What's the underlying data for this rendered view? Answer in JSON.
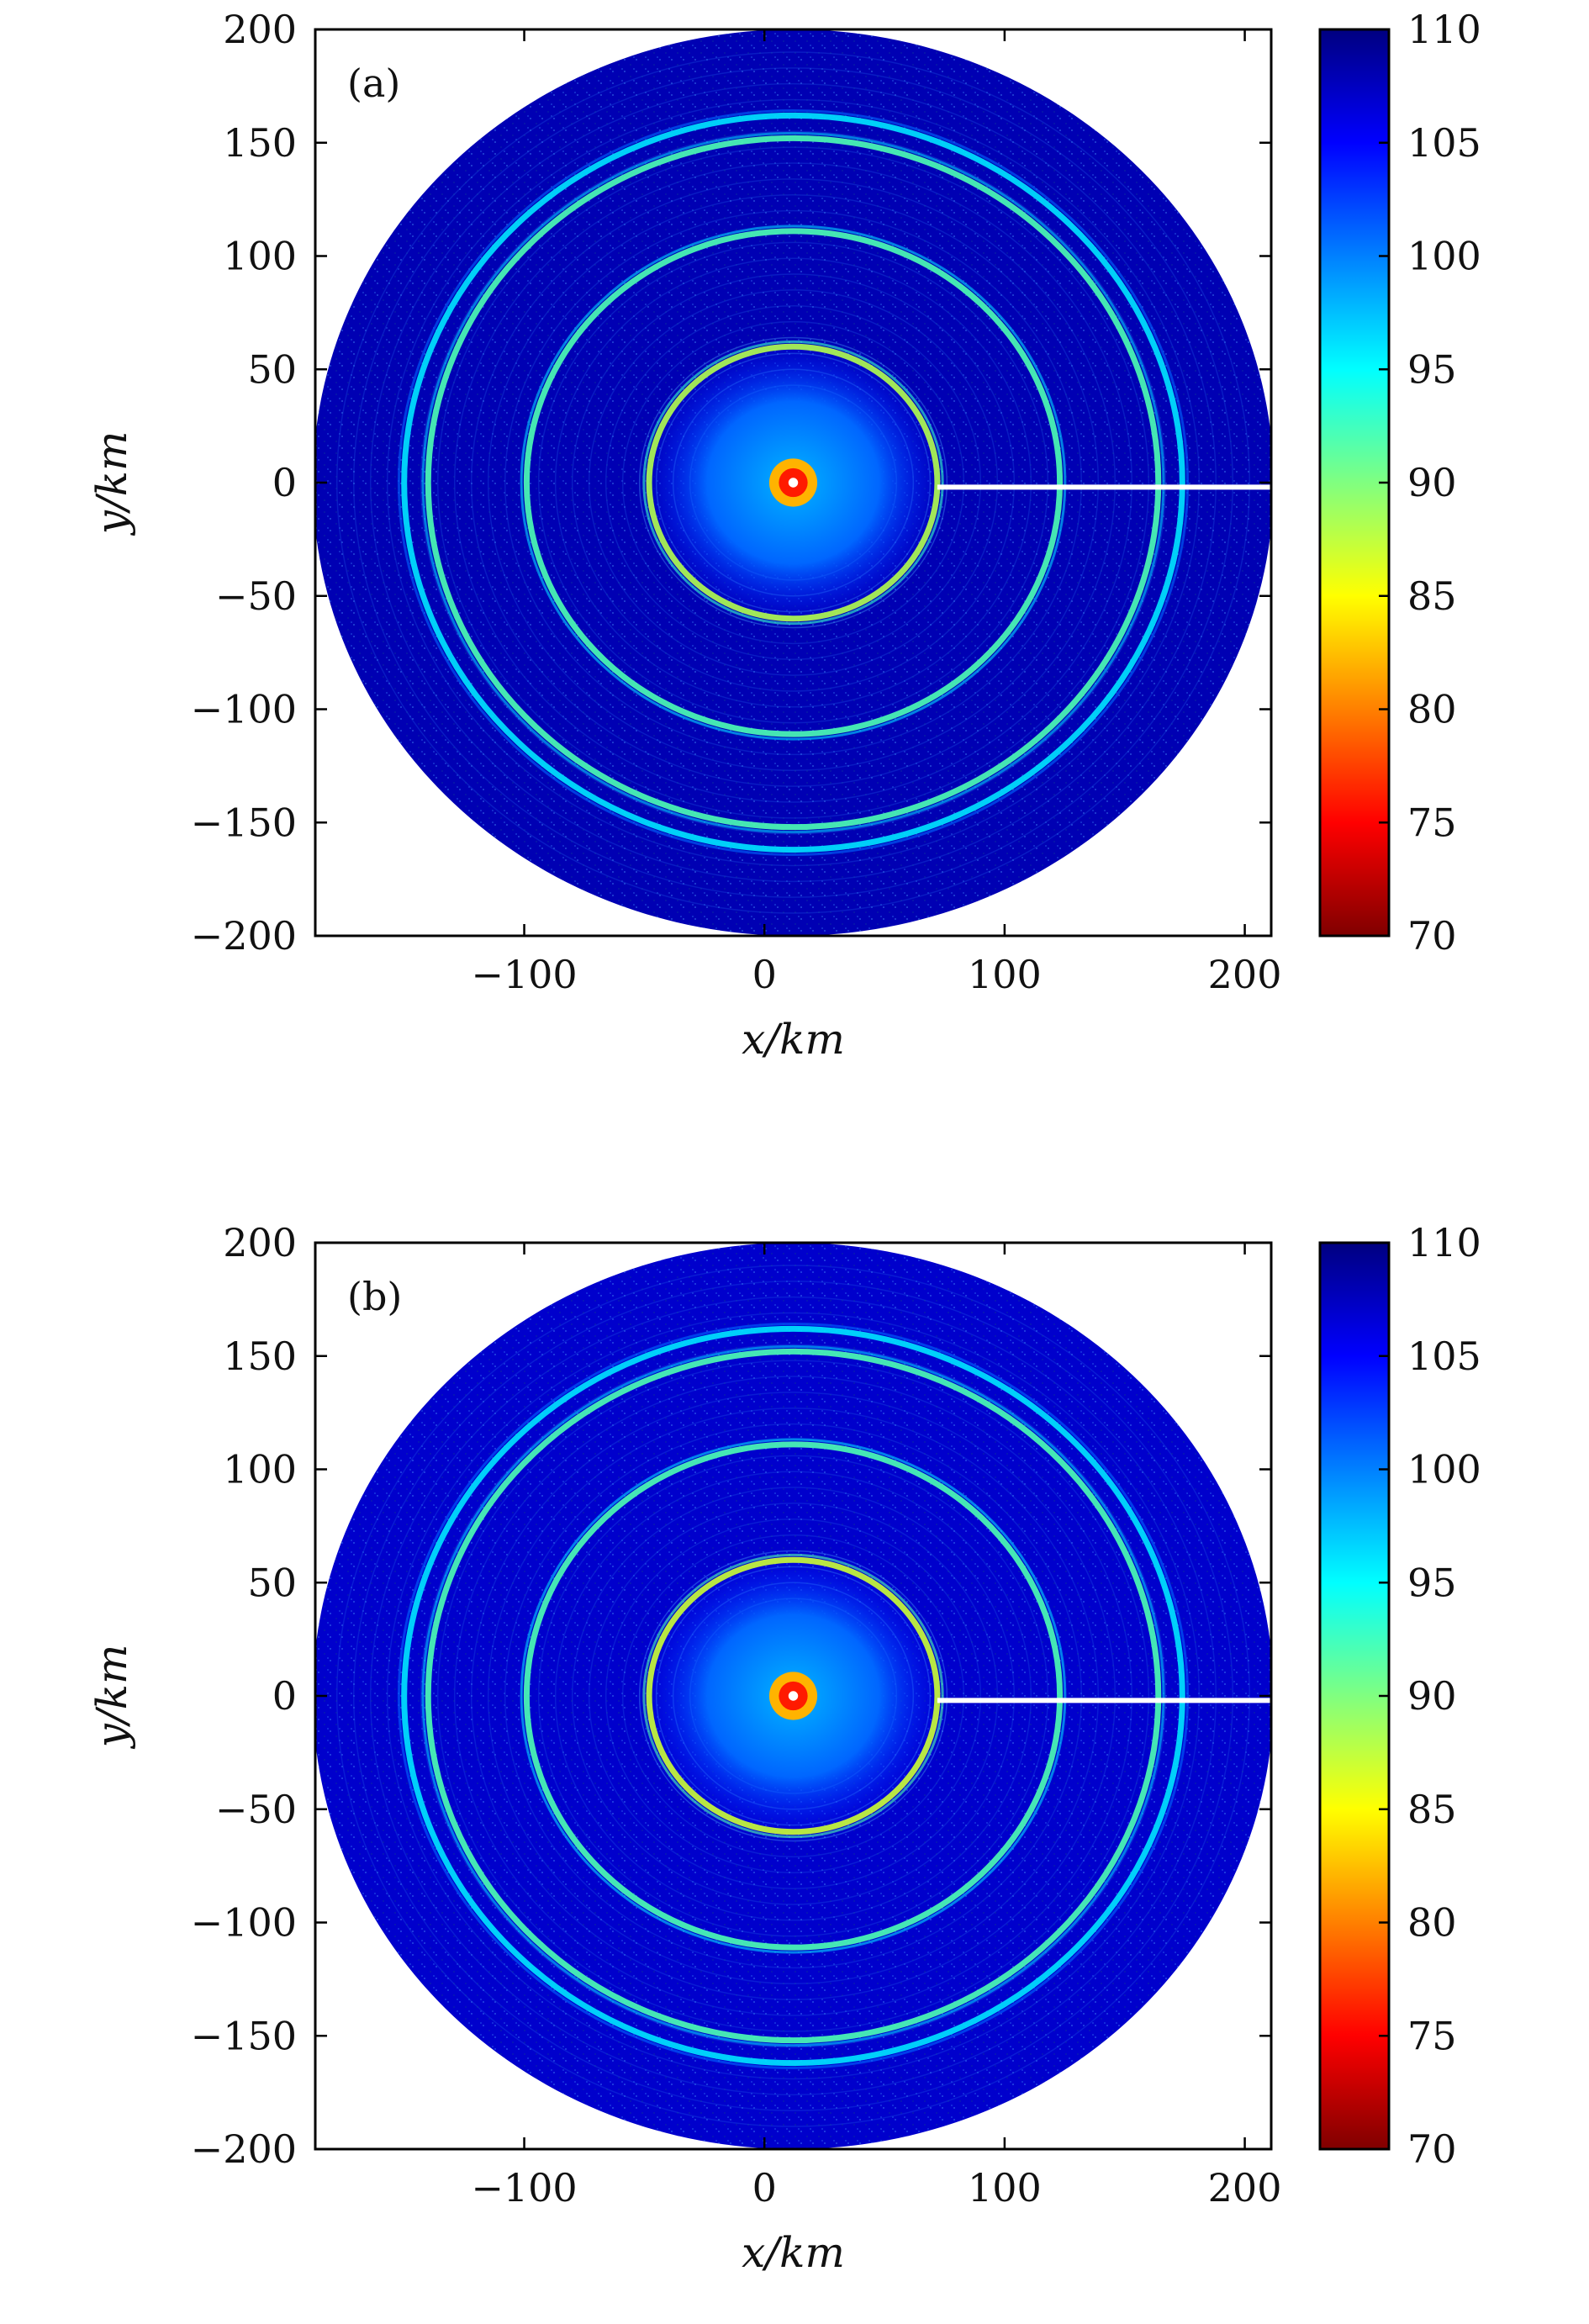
{
  "chart_data": [
    {
      "type": "heatmap",
      "panel_label": "(a)",
      "xlabel": "x/km",
      "ylabel": "y/km",
      "xlim": [
        -187,
        211
      ],
      "ylim": [
        -200,
        200
      ],
      "xticks": [
        -100,
        0,
        100,
        200
      ],
      "yticks": [
        -200,
        -150,
        -100,
        -50,
        0,
        50,
        100,
        150,
        200
      ],
      "xtick_labels": [
        "−100",
        "0",
        "100",
        "200"
      ],
      "ytick_labels": [
        "−200",
        "−150",
        "−100",
        "−50",
        "0",
        "50",
        "100",
        "150",
        "200"
      ],
      "colorbar": {
        "min": 70,
        "max": 110,
        "ticks": [
          70,
          75,
          80,
          85,
          90,
          95,
          100,
          105,
          110
        ],
        "tick_labels": [
          "70",
          "75",
          "80",
          "85",
          "90",
          "95",
          "100",
          "105",
          "110"
        ],
        "colormap": "jet_reversed",
        "colors": [
          "#800000",
          "#ff0000",
          "#ff8000",
          "#ffff00",
          "#80ff80",
          "#00ffff",
          "#0080ff",
          "#0000ff",
          "#000080"
        ]
      },
      "field": {
        "center_x": 12,
        "center_y": 0,
        "outer_radius": 200,
        "background_value": 108,
        "inner_disc_radius": 65,
        "inner_disc_value": 101,
        "source_value": 76,
        "white_line": {
          "x_from": 72,
          "x_to": 211,
          "y": -2
        },
        "rings": [
          {
            "radius": 60,
            "value": 88
          },
          {
            "radius": 111,
            "value": 92
          },
          {
            "radius": 152,
            "value": 92
          },
          {
            "radius": 162,
            "value": 96
          }
        ]
      }
    },
    {
      "type": "heatmap",
      "panel_label": "(b)",
      "xlabel": "x/km",
      "ylabel": "y/km",
      "xlim": [
        -187,
        211
      ],
      "ylim": [
        -200,
        200
      ],
      "xticks": [
        -100,
        0,
        100,
        200
      ],
      "yticks": [
        -200,
        -150,
        -100,
        -50,
        0,
        50,
        100,
        150,
        200
      ],
      "xtick_labels": [
        "−100",
        "0",
        "100",
        "200"
      ],
      "ytick_labels": [
        "−200",
        "−150",
        "−100",
        "−50",
        "0",
        "50",
        "100",
        "150",
        "200"
      ],
      "colorbar": {
        "min": 70,
        "max": 110,
        "ticks": [
          70,
          75,
          80,
          85,
          90,
          95,
          100,
          105,
          110
        ],
        "tick_labels": [
          "70",
          "75",
          "80",
          "85",
          "90",
          "95",
          "100",
          "105",
          "110"
        ],
        "colormap": "jet_reversed",
        "colors": [
          "#800000",
          "#ff0000",
          "#ff8000",
          "#ffff00",
          "#80ff80",
          "#00ffff",
          "#0080ff",
          "#0000ff",
          "#000080"
        ]
      },
      "field": {
        "center_x": 12,
        "center_y": 0,
        "outer_radius": 200,
        "background_value": 107,
        "inner_disc_radius": 65,
        "inner_disc_value": 101,
        "source_value": 76,
        "white_line": {
          "x_from": 72,
          "x_to": 211,
          "y": -2
        },
        "rings": [
          {
            "radius": 60,
            "value": 87
          },
          {
            "radius": 111,
            "value": 92
          },
          {
            "radius": 152,
            "value": 92
          },
          {
            "radius": 162,
            "value": 96
          }
        ]
      }
    }
  ]
}
